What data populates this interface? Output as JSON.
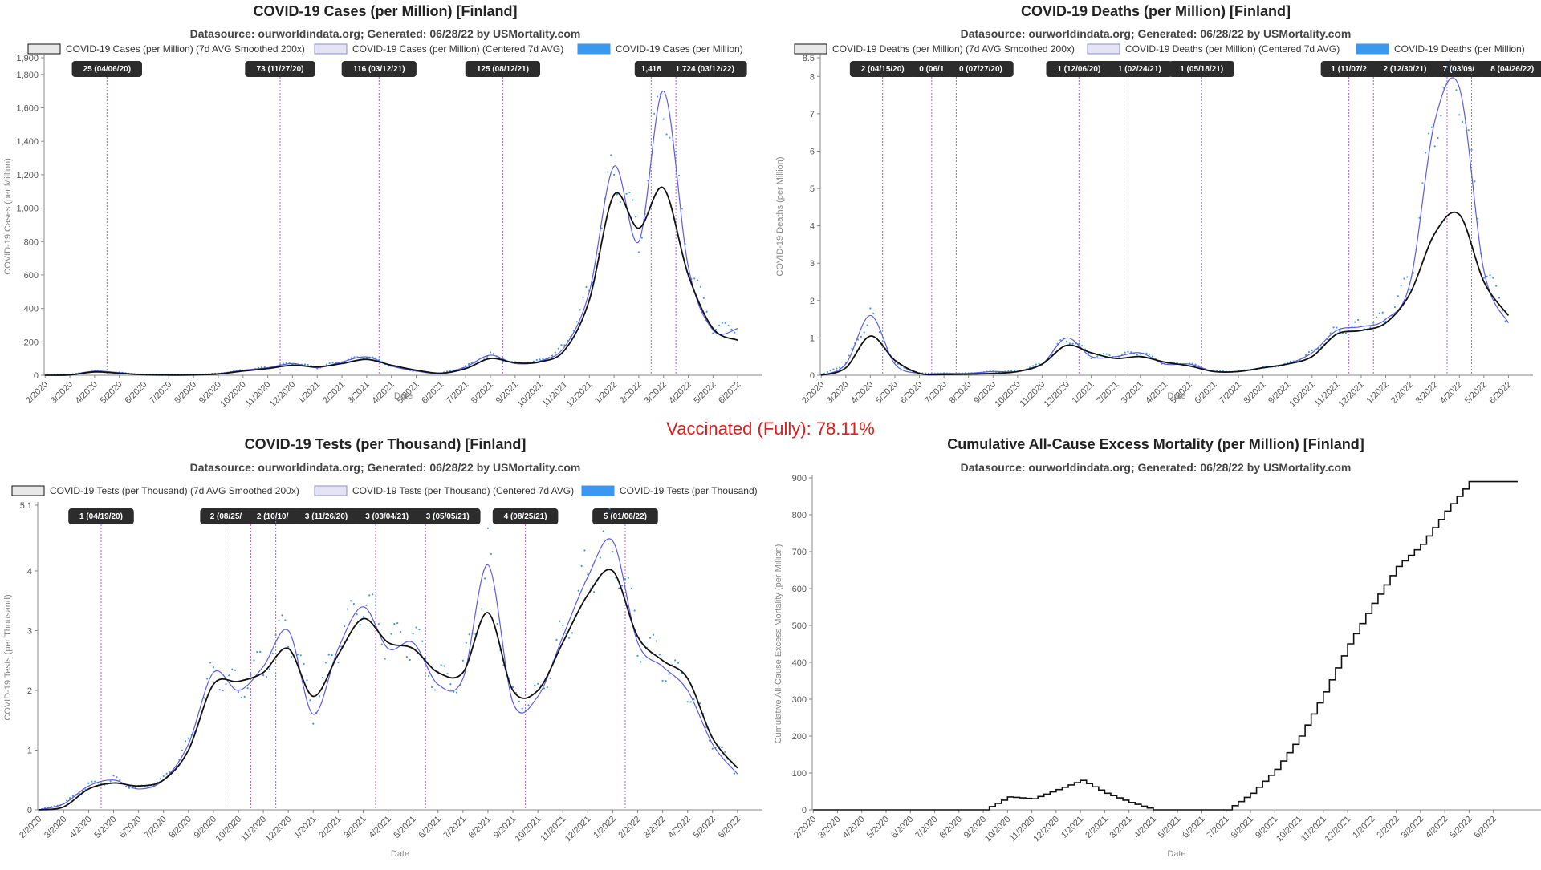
{
  "vaccinated": "Vaccinated (Fully): 78.11%",
  "colors": {
    "smooth": "#111111",
    "centered": "#5b5bea",
    "raw": "#3a98f0",
    "vline": "#b05ce6",
    "annotation": "#2c2c2c"
  },
  "chart_data": [
    {
      "type": "line",
      "title": "COVID-19 Cases (per Million) [Finland]",
      "subtitle": "Datasource: ourworldindata.org; Generated: 06/28/22 by USMortality.com",
      "xlabel": "Date",
      "ylabel": "COVID-19 Cases (per Million)",
      "ylim": [
        0,
        1900
      ],
      "yticks": [
        0,
        200,
        400,
        600,
        800,
        1000,
        1200,
        1400,
        1600,
        1800,
        1900
      ],
      "ytick_labels": [
        "0",
        "200",
        "400",
        "600",
        "800",
        "1,000",
        "1,200",
        "1,400",
        "1,600",
        "1,800",
        "1,900"
      ],
      "xlim": [
        2020.08,
        2022.5
      ],
      "xticks": [
        "2/2020",
        "3/2020",
        "4/2020",
        "5/2020",
        "6/2020",
        "7/2020",
        "8/2020",
        "9/2020",
        "10/2020",
        "11/2020",
        "12/2020",
        "1/2021",
        "2/2021",
        "3/2021",
        "4/2021",
        "5/2021",
        "6/2021",
        "7/2021",
        "8/2021",
        "9/2021",
        "10/2021",
        "11/2021",
        "12/2021",
        "1/2022",
        "2/2022",
        "3/2022",
        "4/2022",
        "5/2022",
        "6/2022"
      ],
      "legend": [
        "COVID-19 Cases (per Million) (7d AVG Smoothed 200x)",
        "COVID-19 Cases (per Million) (Centered 7d AVG)",
        "COVID-19 Cases (per Million)"
      ],
      "series": [
        {
          "name": "COVID-19 Cases (per Million) (7d AVG Smoothed 200x)",
          "x": [
            "2/2020",
            "3/2020",
            "4/2020",
            "5/2020",
            "6/2020",
            "7/2020",
            "8/2020",
            "9/2020",
            "10/2020",
            "11/2020",
            "12/2020",
            "1/2021",
            "2/2021",
            "3/2021",
            "4/2021",
            "5/2021",
            "6/2021",
            "7/2021",
            "8/2021",
            "9/2021",
            "10/2021",
            "11/2021",
            "12/2021",
            "1/2022",
            "2/2022",
            "3/2022",
            "4/2022",
            "5/2022",
            "6/2022"
          ],
          "values": [
            0,
            2,
            20,
            12,
            3,
            1,
            2,
            8,
            25,
            40,
            60,
            50,
            70,
            95,
            60,
            30,
            12,
            40,
            100,
            75,
            80,
            150,
            450,
            1080,
            880,
            1120,
            600,
            280,
            210
          ]
        },
        {
          "name": "COVID-19 Cases (per Million) (Centered 7d AVG)",
          "x": [
            "2/2020",
            "3/2020",
            "4/2020",
            "5/2020",
            "6/2020",
            "7/2020",
            "8/2020",
            "9/2020",
            "10/2020",
            "11/2020",
            "12/2020",
            "1/2021",
            "2/2021",
            "3/2021",
            "4/2021",
            "5/2021",
            "6/2021",
            "7/2021",
            "8/2021",
            "9/2021",
            "10/2021",
            "11/2021",
            "12/2021",
            "1/2022",
            "2/2022",
            "3/2022",
            "4/2022",
            "5/2022",
            "6/2022"
          ],
          "values": [
            0,
            3,
            25,
            15,
            3,
            1,
            3,
            10,
            30,
            45,
            70,
            45,
            80,
            110,
            55,
            25,
            10,
            50,
            120,
            70,
            85,
            170,
            500,
            1250,
            800,
            1700,
            650,
            270,
            280
          ]
        }
      ],
      "annotations": [
        {
          "label": "25 (04/06/20)",
          "x": "4/2020"
        },
        {
          "label": "73 (11/27/20)",
          "x": "11/2020"
        },
        {
          "label": "116 (03/12/21)",
          "x": "3/2021"
        },
        {
          "label": "125 (08/12/21)",
          "x": "8/2021"
        },
        {
          "label": "1,418",
          "x": "2/2022"
        },
        {
          "label": "1,724 (03/12/22)",
          "x": "3/2022"
        }
      ]
    },
    {
      "type": "line",
      "title": "COVID-19 Deaths (per Million) [Finland]",
      "subtitle": "Datasource: ourworldindata.org; Generated: 06/28/22 by USMortality.com",
      "xlabel": "Date",
      "ylabel": "COVID-19 Deaths (per Million)",
      "ylim": [
        0,
        8.5
      ],
      "yticks": [
        0,
        1,
        2,
        3,
        4,
        5,
        6,
        7,
        8,
        8.5
      ],
      "ytick_labels": [
        "0",
        "1",
        "2",
        "3",
        "4",
        "5",
        "6",
        "7",
        "8",
        "8.5"
      ],
      "xlim": [
        2020.08,
        2022.5
      ],
      "xticks": [
        "2/2020",
        "3/2020",
        "4/2020",
        "5/2020",
        "6/2020",
        "7/2020",
        "8/2020",
        "9/2020",
        "10/2020",
        "11/2020",
        "12/2020",
        "1/2021",
        "2/2021",
        "3/2021",
        "4/2021",
        "5/2021",
        "6/2021",
        "7/2021",
        "8/2021",
        "9/2021",
        "10/2021",
        "11/2021",
        "12/2021",
        "1/2022",
        "2/2022",
        "3/2022",
        "4/2022",
        "5/2022",
        "6/2022"
      ],
      "legend": [
        "COVID-19 Deaths (per Million) (7d AVG Smoothed 200x)",
        "COVID-19 Deaths (per Million) (Centered 7d AVG)",
        "COVID-19 Deaths (per Million)"
      ],
      "series": [
        {
          "name": "COVID-19 Deaths (per Million) (7d AVG Smoothed 200x)",
          "x": [
            "2/2020",
            "3/2020",
            "4/2020",
            "5/2020",
            "6/2020",
            "7/2020",
            "8/2020",
            "9/2020",
            "10/2020",
            "11/2020",
            "12/2020",
            "1/2021",
            "2/2021",
            "3/2021",
            "4/2021",
            "5/2021",
            "6/2021",
            "7/2021",
            "8/2021",
            "9/2021",
            "10/2021",
            "11/2021",
            "12/2021",
            "1/2022",
            "2/2022",
            "3/2022",
            "4/2022",
            "5/2022",
            "6/2022"
          ],
          "values": [
            0,
            0.2,
            1.05,
            0.4,
            0.05,
            0.02,
            0.03,
            0.05,
            0.1,
            0.3,
            0.8,
            0.6,
            0.45,
            0.5,
            0.35,
            0.25,
            0.1,
            0.1,
            0.2,
            0.3,
            0.5,
            1.1,
            1.2,
            1.4,
            2.2,
            3.8,
            4.3,
            2.5,
            1.6
          ]
        },
        {
          "name": "COVID-19 Deaths (per Million) (Centered 7d AVG)",
          "x": [
            "2/2020",
            "3/2020",
            "4/2020",
            "5/2020",
            "6/2020",
            "7/2020",
            "8/2020",
            "9/2020",
            "10/2020",
            "11/2020",
            "12/2020",
            "1/2021",
            "2/2021",
            "3/2021",
            "4/2021",
            "5/2021",
            "6/2021",
            "7/2021",
            "8/2021",
            "9/2021",
            "10/2021",
            "11/2021",
            "12/2021",
            "1/2022",
            "2/2022",
            "3/2022",
            "4/2022",
            "5/2022",
            "6/2022"
          ],
          "values": [
            0,
            0.3,
            1.6,
            0.3,
            0.05,
            0.05,
            0.05,
            0.1,
            0.1,
            0.3,
            1.0,
            0.5,
            0.5,
            0.6,
            0.3,
            0.3,
            0.1,
            0.1,
            0.2,
            0.3,
            0.6,
            1.2,
            1.3,
            1.5,
            2.5,
            6.8,
            7.7,
            2.8,
            1.4
          ]
        }
      ],
      "annotations": [
        {
          "label": "2 (04/15/20)",
          "x": "4/2020"
        },
        {
          "label": "0 (06/1",
          "x": "6/2020"
        },
        {
          "label": "0 (07/27/20)",
          "x": "7/2020"
        },
        {
          "label": "1 (12/06/20)",
          "x": "12/2020"
        },
        {
          "label": "1 (02/24/21)",
          "x": "2/2021"
        },
        {
          "label": "1 (05/18/21)",
          "x": "5/2021"
        },
        {
          "label": "1 (11/07/2",
          "x": "11/2021"
        },
        {
          "label": "2 (12/30/21)",
          "x": "12/2021"
        },
        {
          "label": "7 (03/09/",
          "x": "3/2022"
        },
        {
          "label": "8 (04/26/22)",
          "x": "4/2022"
        }
      ]
    },
    {
      "type": "line",
      "title": "COVID-19 Tests (per Thousand) [Finland]",
      "subtitle": "Datasource: ourworldindata.org; Generated: 06/28/22 by USMortality.com",
      "xlabel": "Date",
      "ylabel": "COVID-19 Tests (per Thousand)",
      "ylim": [
        0,
        5.1
      ],
      "yticks": [
        0,
        1,
        2,
        3,
        4,
        5.1
      ],
      "ytick_labels": [
        "0",
        "1",
        "2",
        "3",
        "4",
        "5.1"
      ],
      "xlim": [
        2020.08,
        2022.5
      ],
      "xticks": [
        "2/2020",
        "3/2020",
        "4/2020",
        "5/2020",
        "6/2020",
        "7/2020",
        "8/2020",
        "9/2020",
        "10/2020",
        "11/2020",
        "12/2020",
        "1/2021",
        "2/2021",
        "3/2021",
        "4/2021",
        "5/2021",
        "6/2021",
        "7/2021",
        "8/2021",
        "9/2021",
        "10/2021",
        "11/2021",
        "12/2021",
        "1/2022",
        "2/2022",
        "3/2022",
        "4/2022",
        "5/2022",
        "6/2022"
      ],
      "legend": [
        "COVID-19 Tests (per Thousand) (7d AVG Smoothed 200x)",
        "COVID-19 Tests (per Thousand) (Centered 7d AVG)",
        "COVID-19 Tests (per Thousand)"
      ],
      "series": [
        {
          "name": "COVID-19 Tests (per Thousand) (7d AVG Smoothed 200x)",
          "x": [
            "2/2020",
            "3/2020",
            "4/2020",
            "5/2020",
            "6/2020",
            "7/2020",
            "8/2020",
            "9/2020",
            "10/2020",
            "11/2020",
            "12/2020",
            "1/2021",
            "2/2021",
            "3/2021",
            "4/2021",
            "5/2021",
            "6/2021",
            "7/2021",
            "8/2021",
            "9/2021",
            "10/2021",
            "11/2021",
            "12/2021",
            "1/2022",
            "2/2022",
            "3/2022",
            "4/2022",
            "5/2022",
            "6/2022"
          ],
          "values": [
            0,
            0.05,
            0.35,
            0.45,
            0.4,
            0.5,
            1.0,
            2.1,
            2.15,
            2.3,
            2.7,
            1.9,
            2.6,
            3.2,
            2.8,
            2.7,
            2.3,
            2.3,
            3.3,
            2.0,
            2.0,
            2.8,
            3.6,
            4.0,
            2.9,
            2.5,
            2.2,
            1.2,
            0.7
          ]
        },
        {
          "name": "COVID-19 Tests (per Thousand) (Centered 7d AVG)",
          "x": [
            "2/2020",
            "3/2020",
            "4/2020",
            "5/2020",
            "6/2020",
            "7/2020",
            "8/2020",
            "9/2020",
            "10/2020",
            "11/2020",
            "12/2020",
            "1/2021",
            "2/2021",
            "3/2021",
            "4/2021",
            "5/2021",
            "6/2021",
            "7/2021",
            "8/2021",
            "9/2021",
            "10/2021",
            "11/2021",
            "12/2021",
            "1/2022",
            "2/2022",
            "3/2022",
            "4/2022",
            "5/2022",
            "6/2022"
          ],
          "values": [
            0,
            0.1,
            0.4,
            0.5,
            0.35,
            0.5,
            1.1,
            2.3,
            2.0,
            2.4,
            3.0,
            1.6,
            2.7,
            3.4,
            2.7,
            2.8,
            2.1,
            2.2,
            4.1,
            1.8,
            1.9,
            2.9,
            3.9,
            4.5,
            2.8,
            2.4,
            2.0,
            1.1,
            0.6
          ]
        }
      ],
      "annotations": [
        {
          "label": "1 (04/19/20)",
          "x": "4/2020"
        },
        {
          "label": "2 (08/25/",
          "x": "9/2020"
        },
        {
          "label": "2 (10/10/",
          "x": "10/2020"
        },
        {
          "label": "3 (11/26/20)",
          "x": "11/2020"
        },
        {
          "label": "3 (03/04/21)",
          "x": "3/2021"
        },
        {
          "label": "3 (05/05/21)",
          "x": "5/2021"
        },
        {
          "label": "4 (08/25/21)",
          "x": "9/2021"
        },
        {
          "label": "5 (01/06/22)",
          "x": "1/2022"
        }
      ]
    },
    {
      "type": "line",
      "title": "Cumulative All-Cause Excess Mortality (per Million) [Finland]",
      "subtitle": "Datasource: ourworldindata.org; Generated: 06/28/22 by USMortality.com",
      "xlabel": "Date",
      "ylabel": "Cumulative All-Cause Excess Mortality (per Million)",
      "ylim": [
        0,
        900
      ],
      "yticks": [
        0,
        100,
        200,
        300,
        400,
        500,
        600,
        700,
        800,
        900
      ],
      "ytick_labels": [
        "0",
        "100",
        "200",
        "300",
        "400",
        "500",
        "600",
        "700",
        "800",
        "900"
      ],
      "xlim": [
        2020.08,
        2022.58
      ],
      "xticks": [
        "2/2020",
        "3/2020",
        "4/2020",
        "5/2020",
        "6/2020",
        "7/2020",
        "8/2020",
        "9/2020",
        "10/2020",
        "11/2020",
        "12/2020",
        "1/2021",
        "2/2021",
        "3/2021",
        "4/2021",
        "5/2021",
        "6/2021",
        "7/2021",
        "8/2021",
        "9/2021",
        "10/2021",
        "11/2021",
        "12/2021",
        "1/2022",
        "2/2022",
        "3/2022",
        "4/2022",
        "5/2022",
        "6/2022"
      ],
      "legend": [],
      "series": [
        {
          "name": "Cumulative All-Cause Excess Mortality (per Million)",
          "x": [
            "2/2020",
            "9/2020",
            "10/2020",
            "11/2020",
            "12/2020",
            "1/2021",
            "2/2021",
            "3/2021",
            "4/2021",
            "6/2021",
            "7/2021",
            "8/2021",
            "9/2021",
            "10/2021",
            "11/2021",
            "12/2021",
            "1/2022",
            "2/2022",
            "3/2022",
            "4/2022",
            "5/2022",
            "6/2022",
            "7/2022"
          ],
          "values": [
            0,
            0,
            35,
            30,
            55,
            80,
            45,
            20,
            0,
            0,
            0,
            45,
            110,
            200,
            320,
            450,
            560,
            660,
            720,
            810,
            890,
            890,
            890
          ]
        }
      ],
      "annotations": []
    }
  ]
}
